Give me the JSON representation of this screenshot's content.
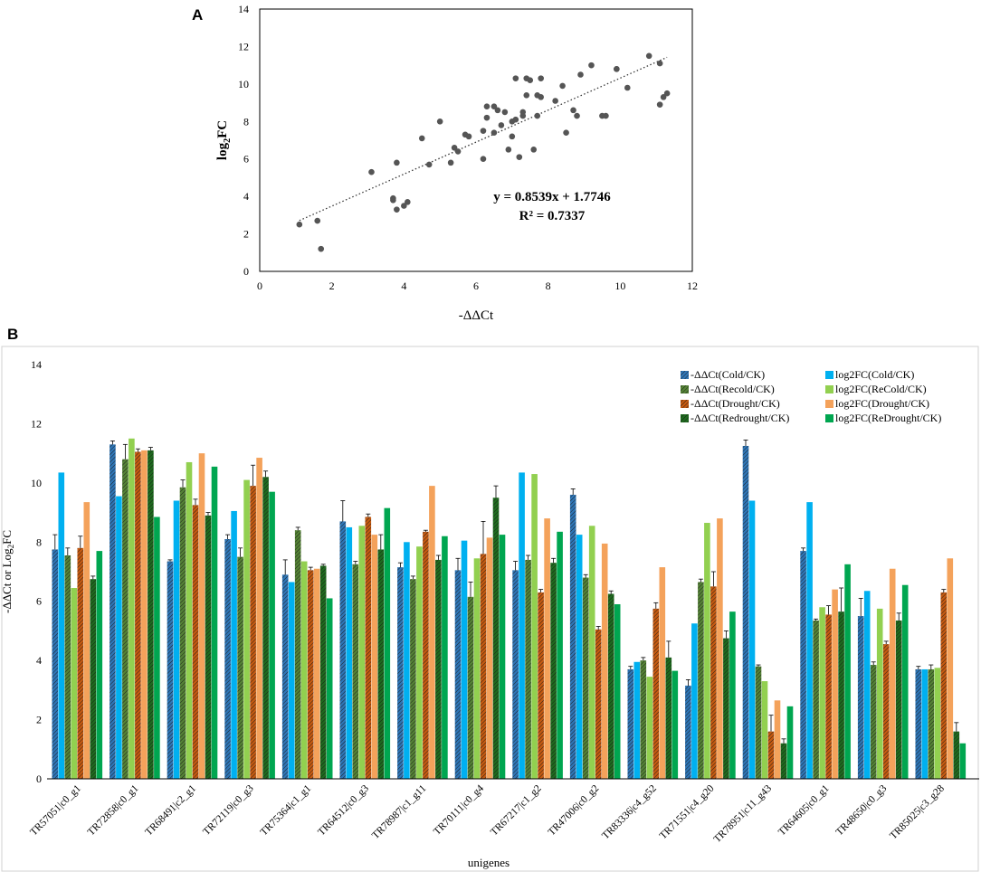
{
  "figure": {
    "panel_a_label": "A",
    "panel_b_label": "B"
  },
  "chart_data": [
    {
      "type": "scatter",
      "panel": "A",
      "xlabel": "-ΔΔCt",
      "ylabel_main": "log",
      "ylabel_sub": "2",
      "ylabel_tail": "FC",
      "xlim": [
        0,
        12
      ],
      "ylim": [
        0,
        14
      ],
      "xticks": [
        0,
        2,
        4,
        6,
        8,
        10,
        12
      ],
      "yticks": [
        0,
        2,
        4,
        6,
        8,
        10,
        12,
        14
      ],
      "equation": "y = 0.8539x + 1.7746",
      "r2": "R² = 0.7337",
      "trendline": {
        "slope": 0.8539,
        "intercept": 1.7746,
        "x_range": [
          1.1,
          11.3
        ]
      },
      "points": [
        [
          1.1,
          2.5
        ],
        [
          1.6,
          2.7
        ],
        [
          1.7,
          1.2
        ],
        [
          3.1,
          5.3
        ],
        [
          3.7,
          3.9
        ],
        [
          3.7,
          3.8
        ],
        [
          3.8,
          3.3
        ],
        [
          3.8,
          5.8
        ],
        [
          4.0,
          3.5
        ],
        [
          4.1,
          3.7
        ],
        [
          4.5,
          7.1
        ],
        [
          4.7,
          5.7
        ],
        [
          5.0,
          8.0
        ],
        [
          5.3,
          5.8
        ],
        [
          5.4,
          6.6
        ],
        [
          5.5,
          6.4
        ],
        [
          5.7,
          7.3
        ],
        [
          5.8,
          7.2
        ],
        [
          6.2,
          6.0
        ],
        [
          6.2,
          7.5
        ],
        [
          6.3,
          8.8
        ],
        [
          6.3,
          8.2
        ],
        [
          6.5,
          7.4
        ],
        [
          6.5,
          8.8
        ],
        [
          6.6,
          8.6
        ],
        [
          6.7,
          7.8
        ],
        [
          6.8,
          8.5
        ],
        [
          6.9,
          6.5
        ],
        [
          7.0,
          7.2
        ],
        [
          7.0,
          8.0
        ],
        [
          7.1,
          8.1
        ],
        [
          7.1,
          10.3
        ],
        [
          7.2,
          6.1
        ],
        [
          7.3,
          8.5
        ],
        [
          7.3,
          8.3
        ],
        [
          7.4,
          9.4
        ],
        [
          7.4,
          10.3
        ],
        [
          7.5,
          10.2
        ],
        [
          7.6,
          6.5
        ],
        [
          7.7,
          8.3
        ],
        [
          7.7,
          9.4
        ],
        [
          7.8,
          9.3
        ],
        [
          7.8,
          10.3
        ],
        [
          8.2,
          9.1
        ],
        [
          8.4,
          9.9
        ],
        [
          8.5,
          7.4
        ],
        [
          8.7,
          8.6
        ],
        [
          8.8,
          8.3
        ],
        [
          8.9,
          10.5
        ],
        [
          9.2,
          11.0
        ],
        [
          9.5,
          8.3
        ],
        [
          9.6,
          8.3
        ],
        [
          9.9,
          10.8
        ],
        [
          9.9,
          10.8
        ],
        [
          10.2,
          9.8
        ],
        [
          10.8,
          11.5
        ],
        [
          11.1,
          11.1
        ],
        [
          11.1,
          8.9
        ],
        [
          11.2,
          9.3
        ],
        [
          11.3,
          9.5
        ]
      ]
    },
    {
      "type": "bar",
      "panel": "B",
      "xlabel": "unigenes",
      "ylabel": "-ΔΔCt  or  Log",
      "ylabel_sub": "2",
      "ylabel_tail": "FC",
      "ylim": [
        0,
        14
      ],
      "yticks": [
        0,
        2,
        4,
        6,
        8,
        10,
        12,
        14
      ],
      "categories": [
        "TR57051|c0_g1",
        "TR72858|c0_g1",
        "TR68491|c2_g1",
        "TR72119|c0_g3",
        "TR75364|c1_g1",
        "TR64512|c0_g3",
        "TR78987|c1_g11",
        "TR70111|c0_g4",
        "TR67217|c1_g2",
        "TR47006|c0_g2",
        "TR83336|c4_g52",
        "TR71551|c4_g20",
        "TR78951|c11_g43",
        "TR64605|c0_g1",
        "TR48650|c0_g3",
        "TR85025|c3_g28"
      ],
      "series": [
        {
          "name": "-ΔΔCt(Cold/CK)",
          "color": "#2e75b6",
          "hatched": true,
          "values": [
            7.75,
            11.3,
            7.35,
            8.1,
            6.9,
            8.7,
            7.15,
            7.05,
            7.05,
            9.6,
            3.7,
            3.15,
            11.25,
            7.7,
            5.5,
            3.7
          ],
          "errors": [
            0.5,
            0.12,
            0.05,
            0.15,
            0.5,
            0.7,
            0.15,
            0.4,
            0.3,
            0.2,
            0.1,
            0.2,
            0.2,
            0.1,
            0.6,
            0.1
          ]
        },
        {
          "name": "log2FC(Cold/CK)",
          "color": "#00b0f0",
          "hatched": false,
          "values": [
            10.35,
            9.55,
            9.4,
            9.05,
            6.65,
            8.5,
            8.0,
            8.05,
            10.35,
            8.25,
            3.95,
            5.25,
            9.4,
            9.35,
            6.35,
            3.7
          ]
        },
        {
          "name": "-ΔΔCt(Recold/CK)",
          "color": "#548235",
          "hatched": true,
          "values": [
            7.55,
            10.8,
            9.85,
            7.5,
            8.4,
            7.25,
            6.75,
            6.15,
            7.4,
            6.8,
            4.0,
            6.65,
            3.8,
            5.35,
            3.85,
            3.7
          ],
          "errors": [
            0.25,
            0.5,
            0.25,
            0.3,
            0.1,
            0.1,
            0.1,
            0.5,
            0.15,
            0.1,
            0.1,
            0.1,
            0.05,
            0.05,
            0.1,
            0.15
          ]
        },
        {
          "name": "log2FC(ReCold/CK)",
          "color": "#92d050",
          "hatched": false,
          "values": [
            6.45,
            11.5,
            10.7,
            10.1,
            7.35,
            8.55,
            7.85,
            7.45,
            10.3,
            8.55,
            3.45,
            8.65,
            3.3,
            5.8,
            5.75,
            3.75
          ]
        },
        {
          "name": "-ΔΔCt(Drought/CK)",
          "color": "#c55a11",
          "hatched": true,
          "values": [
            7.8,
            11.05,
            9.25,
            9.9,
            7.05,
            8.85,
            8.35,
            7.6,
            6.3,
            5.05,
            5.75,
            6.5,
            1.6,
            5.55,
            4.55,
            6.3
          ],
          "errors": [
            0.4,
            0.1,
            0.2,
            0.7,
            0.1,
            0.1,
            0.05,
            1.1,
            0.1,
            0.1,
            0.2,
            0.5,
            0.55,
            0.3,
            0.1,
            0.1
          ]
        },
        {
          "name": "log2FC(Drought/CK)",
          "color": "#f4a25b",
          "hatched": false,
          "values": [
            9.35,
            11.1,
            11.0,
            10.85,
            7.1,
            8.25,
            9.9,
            8.15,
            8.8,
            7.95,
            7.15,
            8.8,
            2.65,
            6.4,
            7.1,
            7.45
          ]
        },
        {
          "name": "-ΔΔCt(Redrought/CK)",
          "color": "#1e6b1e",
          "hatched": true,
          "values": [
            6.75,
            11.1,
            8.9,
            10.2,
            7.2,
            7.75,
            7.4,
            9.5,
            7.3,
            6.25,
            4.1,
            4.75,
            1.2,
            5.65,
            5.35,
            1.6
          ],
          "errors": [
            0.1,
            0.1,
            0.1,
            0.2,
            0.05,
            0.5,
            0.15,
            0.4,
            0.15,
            0.1,
            0.55,
            0.25,
            0.15,
            0.8,
            0.25,
            0.3
          ]
        },
        {
          "name": "log2FC(ReDrought/CK)",
          "color": "#00a650",
          "hatched": false,
          "values": [
            7.7,
            8.85,
            10.55,
            9.7,
            6.1,
            9.15,
            8.2,
            8.25,
            8.35,
            5.9,
            3.65,
            5.65,
            2.45,
            7.25,
            6.55,
            1.2
          ]
        }
      ]
    }
  ]
}
